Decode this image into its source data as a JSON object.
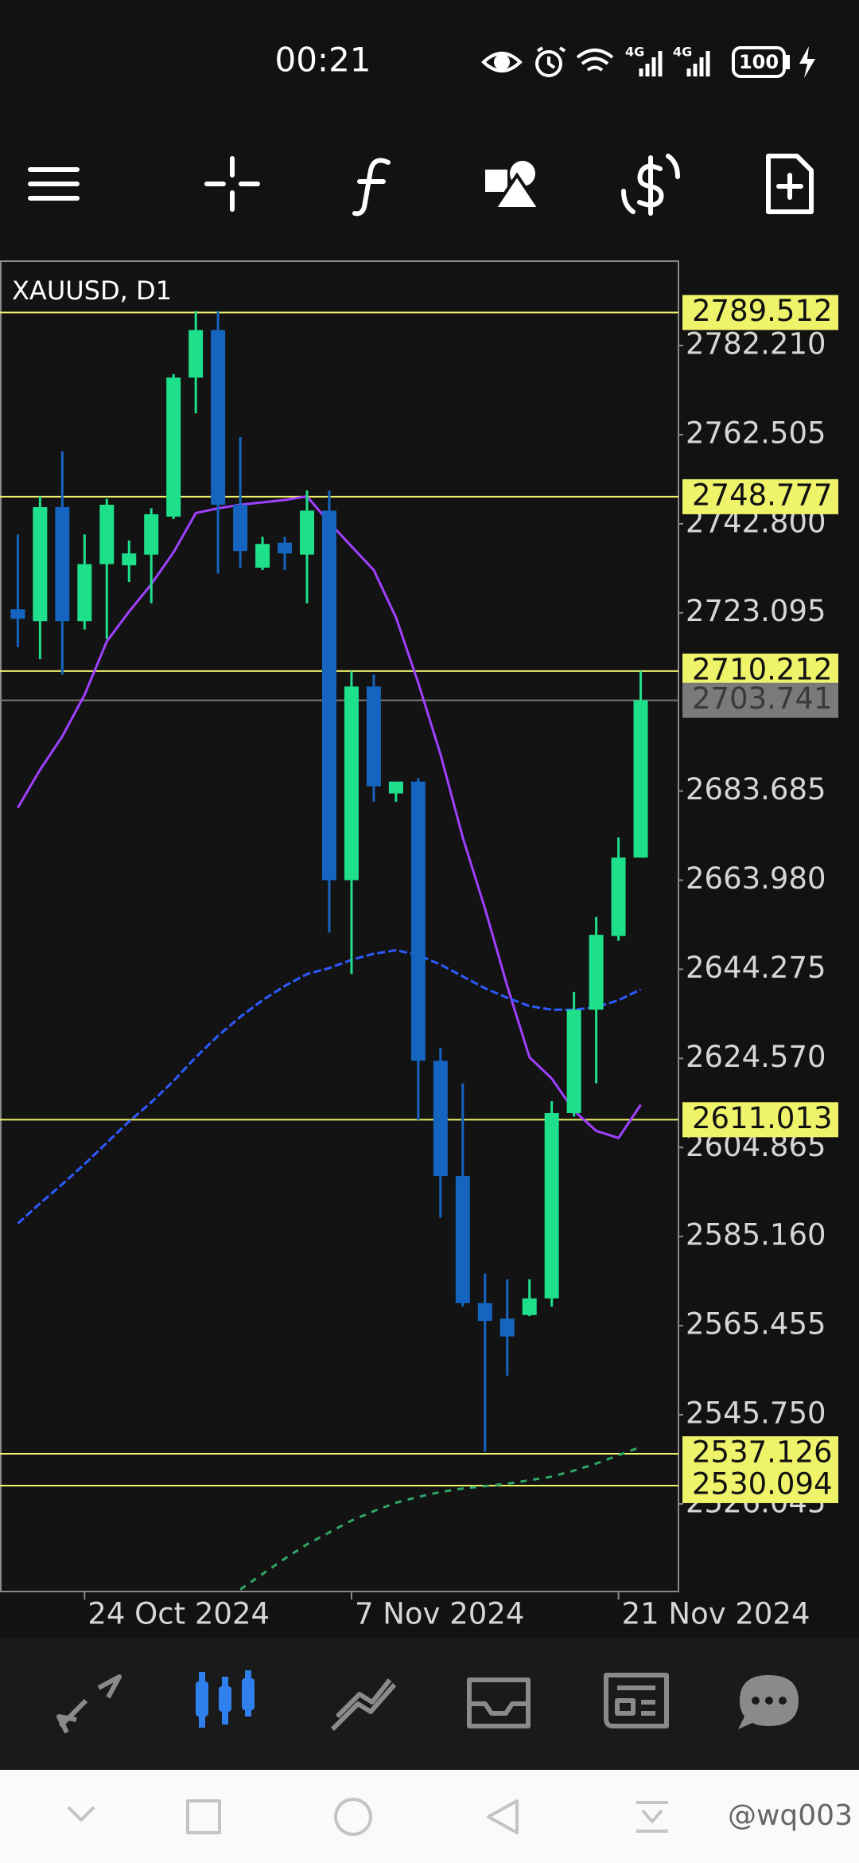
{
  "status_bar": {
    "time": "00:21",
    "battery": "100"
  },
  "chart_data": {
    "type": "candlestick",
    "title": "XAUUSD, D1",
    "categories": [
      null,
      null,
      null,
      "24 Oct 2024",
      null,
      null,
      null,
      null,
      null,
      null,
      null,
      null,
      null,
      null,
      null,
      "7 Nov 2024",
      null,
      null,
      null,
      null,
      null,
      null,
      null,
      null,
      null,
      null,
      null,
      "21 Nov 2024",
      null
    ],
    "open": [
      2723.88,
      2721.25,
      2746.48,
      2721.25,
      2733.87,
      2733.6,
      2735.97,
      2744.38,
      2775.12,
      2785.63,
      2747.0,
      2733.08,
      2738.6,
      2735.97,
      2745.69,
      2663.98,
      2706.8,
      2683.16,
      2685.78,
      2624.04,
      2598.55,
      2570.44,
      2567.02,
      2567.81,
      2571.49,
      2612.48,
      2635.34,
      2651.63,
      2668.97
    ],
    "high": [
      2740.4,
      2748.84,
      2758.83,
      2740.43,
      2748.32,
      2739.1,
      2746.22,
      2775.9,
      2789.83,
      2789.83,
      2761.98,
      2739.9,
      2739.9,
      2750.16,
      2750.16,
      2710.22,
      2709.43,
      2685.78,
      2686.57,
      2626.93,
      2619.05,
      2577.01,
      2575.7,
      2575.7,
      2615.1,
      2639.27,
      2655.83,
      2673.43,
      2710.22
    ],
    "low": [
      2715.5,
      2712.85,
      2709.43,
      2719.41,
      2717.31,
      2729.9,
      2725.2,
      2743.85,
      2767.23,
      2731.76,
      2733.08,
      2732.55,
      2732.55,
      2725.2,
      2652.4,
      2643.22,
      2681.32,
      2681.32,
      2610.9,
      2589.36,
      2569.65,
      2537.6,
      2554.41,
      2567.55,
      2569.65,
      2611.69,
      2619.05,
      2650.57,
      2668.97
    ],
    "close": [
      2721.78,
      2746.48,
      2721.25,
      2733.87,
      2747.0,
      2736.23,
      2744.9,
      2775.12,
      2785.63,
      2747.0,
      2736.76,
      2738.33,
      2736.23,
      2745.69,
      2663.98,
      2706.8,
      2684.73,
      2685.78,
      2624.04,
      2598.55,
      2570.44,
      2566.5,
      2563.08,
      2571.49,
      2612.48,
      2635.34,
      2651.89,
      2668.97,
      2703.741
    ],
    "up_color": "#1fe08a",
    "down_color": "#1565c0",
    "lines": [
      {
        "color": "#a040ff",
        "dashed": false,
        "values": [
          2680.0,
          2688.41,
          2695.77,
          2704.96,
          2716.79,
          2723.36,
          2729.4,
          2736.49,
          2745.16,
          2746.21,
          2747.0,
          2747.53,
          2748.05,
          2748.84,
          2743.06,
          2737.81,
          2732.55,
          2722.04,
          2707.59,
          2691.83,
          2673.44,
          2657.67,
          2640.59,
          2624.83,
          2620.1,
          2613.01,
          2608.54,
          2606.96,
          2614.32
        ]
      },
      {
        "color": "#2d5bff",
        "dashed": true,
        "values": [
          2588.05,
          2592.51,
          2596.72,
          2601.18,
          2605.91,
          2610.64,
          2614.84,
          2619.57,
          2624.83,
          2629.56,
          2633.76,
          2637.44,
          2640.59,
          2643.22,
          2644.53,
          2646.37,
          2647.69,
          2648.48,
          2647.42,
          2645.32,
          2642.7,
          2640.07,
          2637.97,
          2636.13,
          2635.34,
          2635.34,
          2635.86,
          2637.44,
          2639.8
        ]
      },
      {
        "color": "#2fa866",
        "dashed": true,
        "values": [
          null,
          null,
          null,
          null,
          null,
          null,
          null,
          null,
          null,
          null,
          2507.12,
          2510.54,
          2513.95,
          2517.11,
          2519.73,
          2522.36,
          2524.46,
          2526.3,
          2527.61,
          2528.67,
          2529.45,
          2529.98,
          2530.51,
          2531.29,
          2532.08,
          2533.4,
          2534.97,
          2536.81,
          2538.65
        ]
      }
    ],
    "levels": [
      2789.512,
      2748.777,
      2710.212,
      2611.013,
      2537.126,
      2530.094
    ],
    "level_color": "#eef36a",
    "last_price": 2703.741,
    "last_price_color": "#7a7a7a",
    "ylim": [
      2506.67,
      2800.87
    ],
    "yticks": [
      {
        "value": 2782.21,
        "label": "2782.210"
      },
      2762.505,
      {
        "value": 2742.8,
        "label": "2742.800"
      },
      2723.095,
      2683.685,
      {
        "value": 2663.98,
        "label": "2663.980"
      },
      2644.275,
      {
        "value": 2624.57,
        "label": "2624.570"
      },
      2604.865,
      {
        "value": 2585.16,
        "label": "2585.160"
      },
      2565.455,
      {
        "value": 2545.75,
        "label": "2545.750"
      },
      2526.045
    ]
  },
  "watermark": "@wq003"
}
